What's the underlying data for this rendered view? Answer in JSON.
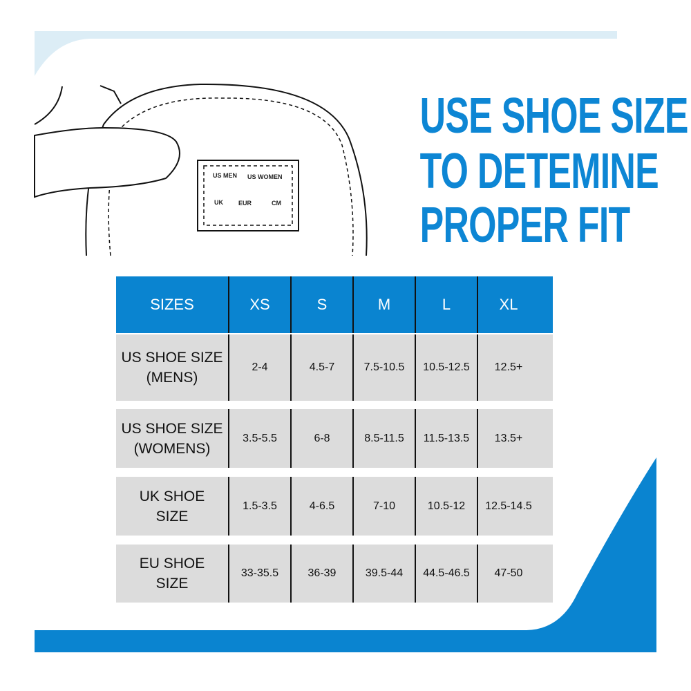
{
  "colors": {
    "brand_blue": "#0a84d0",
    "title_blue": "#0d86d4",
    "light_blue": "#dcedf6",
    "row_gray": "#dcdcdc"
  },
  "illustration": {
    "icon": "hand-holding-shoe-tongue-label",
    "label": [
      "US MEN",
      "US WOMEN",
      "UK",
      "EUR",
      "CM"
    ]
  },
  "title": [
    "USE SHOE SIZE",
    "TO DETEMINE",
    "PROPER FIT"
  ],
  "table": {
    "headers": [
      "SIZES",
      "XS",
      "S",
      "M",
      "L",
      "XL"
    ],
    "rows": [
      {
        "label": [
          "US SHOE SIZE",
          "(MENS)"
        ],
        "values": [
          "2-4",
          "4.5-7",
          "7.5-10.5",
          "10.5-12.5",
          "12.5+"
        ]
      },
      {
        "label": [
          "US SHOE SIZE",
          "(WOMENS)"
        ],
        "values": [
          "3.5-5.5",
          "6-8",
          "8.5-11.5",
          "11.5-13.5",
          "13.5+"
        ]
      },
      {
        "label": [
          "UK SHOE",
          "SIZE"
        ],
        "values": [
          "1.5-3.5",
          "4-6.5",
          "7-10",
          "10.5-12",
          "12.5-14.5"
        ]
      },
      {
        "label": [
          "EU SHOE",
          "SIZE"
        ],
        "values": [
          "33-35.5",
          "36-39",
          "39.5-44",
          "44.5-46.5",
          "47-50"
        ]
      }
    ]
  }
}
